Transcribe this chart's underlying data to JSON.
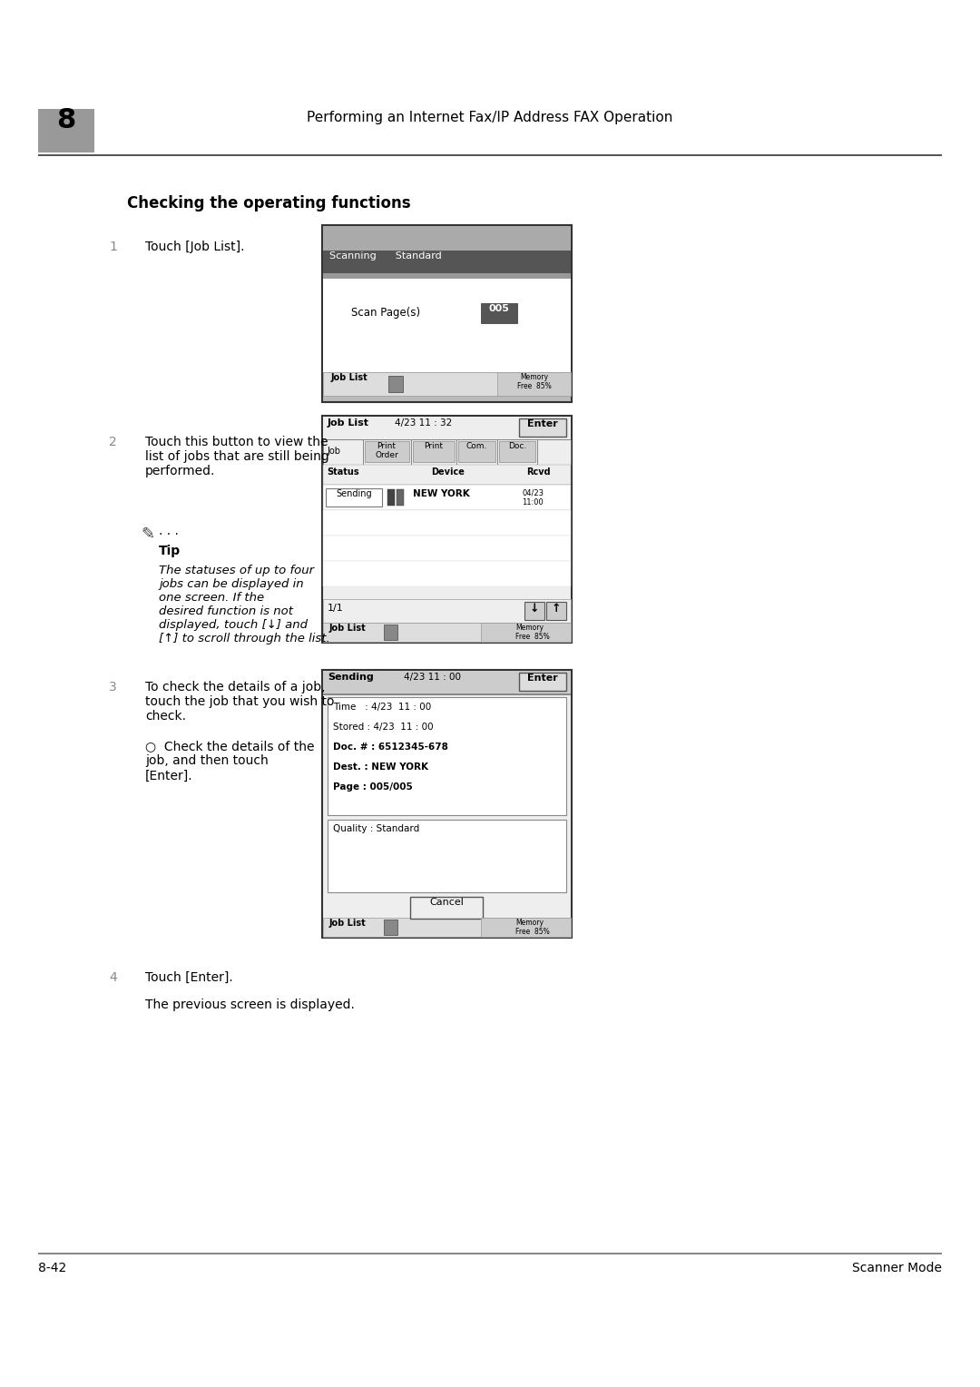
{
  "page_bg": "#ffffff",
  "chapter_num": "8",
  "header_text": "Performing an Internet Fax/IP Address FAX Operation",
  "section_title": "Checking the operating functions",
  "footer_left": "8-42",
  "footer_right": "Scanner Mode",
  "step1_num": "1",
  "step1_text": "Touch [Job List].",
  "step2_num": "2",
  "step2_text": "Touch this button to view the\nlist of jobs that are still being\nperformed.",
  "tip_title": "Tip",
  "tip_body": "The statuses of up to four\njobs can be displayed in\none screen. If the\ndesired function is not\ndisplayed, touch [↓] and\n[↑] to scroll through the list.",
  "step3_num": "3",
  "step3_text": "To check the details of a job,\ntouch the job that you wish to\ncheck.",
  "step3_sub": "Check the details of the\njob, and then touch\n[Enter].",
  "step4_num": "4",
  "step4_text": "Touch [Enter].",
  "step4_sub": "The previous screen is displayed.",
  "screen1_header": "Scanning      Standard",
  "screen1_scan_label": "Scan Page(s)",
  "screen1_scan_value": "005",
  "screen1_footer": "Job List",
  "screen1_memory": "Memory\nFree  85%",
  "screen2_title": "Job List",
  "screen2_date": "4/23 11 : 32",
  "screen2_btn": "Enter",
  "screen2_col1": "Job",
  "screen2_col2": "Print\nOrder",
  "screen2_col3": "Print",
  "screen2_col4": "Com.",
  "screen2_col5": "Doc.",
  "screen2_status": "Status",
  "screen2_device": "Device",
  "screen2_rcvd": "Rcvd",
  "screen2_row_status": "Sending",
  "screen2_row_device": "NEW YORK",
  "screen2_row_rcvd": "04/23\n11:00",
  "screen2_page": "1/1",
  "screen2_footer": "Job List",
  "screen2_memory": "Memory\nFree  85%",
  "screen3_title": "Sending",
  "screen3_date": "4/23 11 : 00",
  "screen3_btn": "Enter",
  "screen3_line1": "Time   : 4/23  11 : 00",
  "screen3_line2": "Stored : 4/23  11 : 00",
  "screen3_line3": "Doc. # : 6512345-678",
  "screen3_line4": "Dest. : NEW YORK",
  "screen3_line5": "Page : 005/005",
  "screen3_quality": "Quality : Standard",
  "screen3_cancel": "Cancel",
  "screen3_footer": "Job List",
  "screen3_memory": "Memory\nFree  85%"
}
